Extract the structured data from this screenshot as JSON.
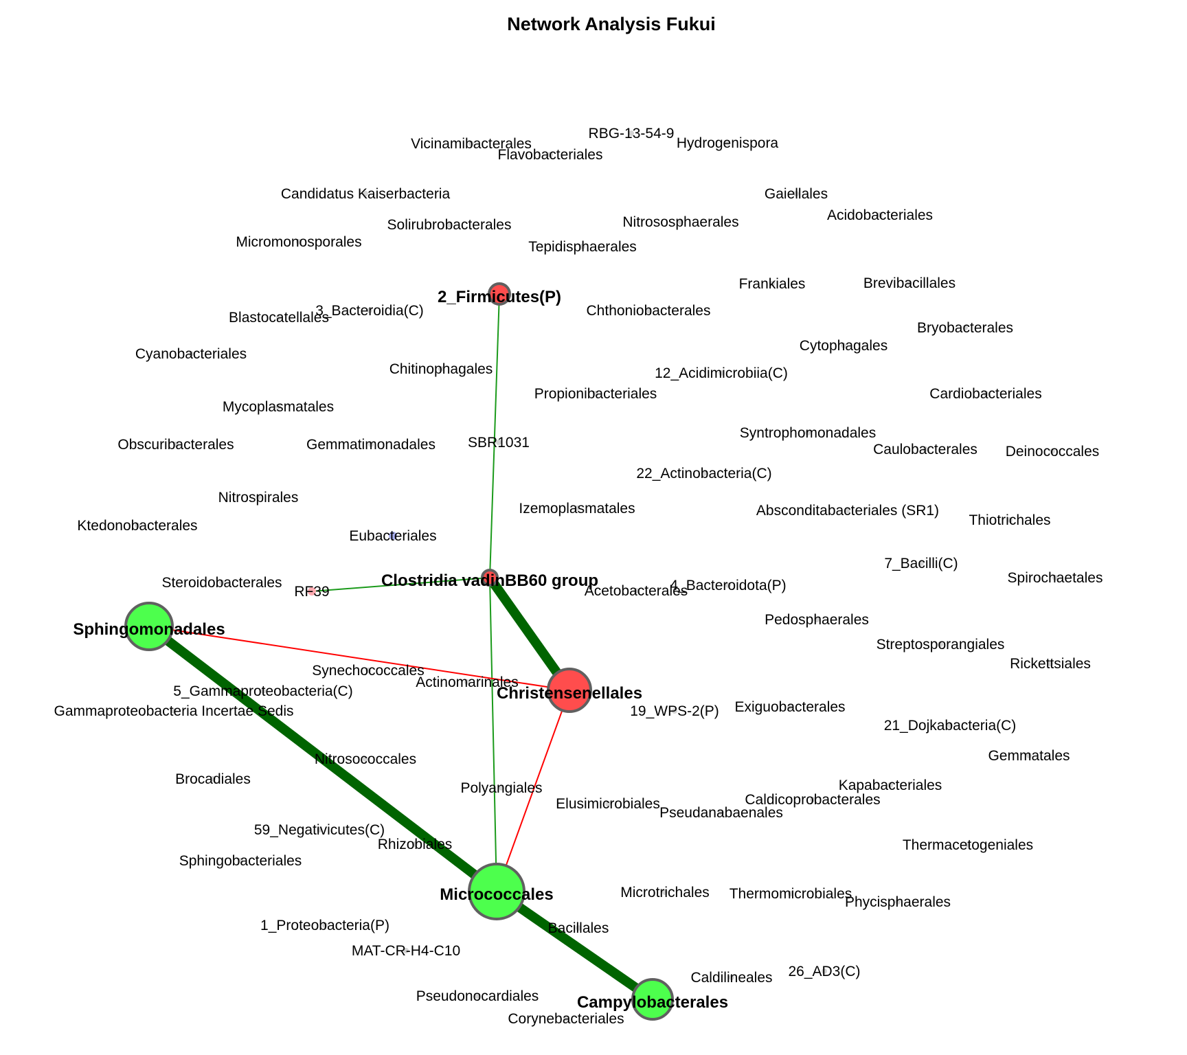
{
  "title": "Network Analysis Fukui",
  "colors": {
    "positive_edge": "#006400",
    "negative_edge": "#ff0000",
    "thin_positive_edge": "#1a9a1a",
    "green_node": "#4dff4d",
    "red_node": "#ff4d4d",
    "node_border": "#606060",
    "small_node": "#d3d3d3",
    "blue_node": "#aab0f0",
    "pink_node": "#ffaab0"
  },
  "hub_nodes": [
    {
      "label": "2_Firmicutes(P)",
      "color": "red"
    },
    {
      "label": "Clostridia vadinBB60 group",
      "color": "red"
    },
    {
      "label": "Sphingomonadales",
      "color": "green"
    },
    {
      "label": "Christensenellales",
      "color": "red"
    },
    {
      "label": "Micrococcales",
      "color": "green"
    },
    {
      "label": "Campylobacterales",
      "color": "green"
    }
  ],
  "edges": [
    {
      "source": "Sphingomonadales",
      "target": "Micrococcales",
      "sign": "positive",
      "weight": "strong"
    },
    {
      "source": "Micrococcales",
      "target": "Campylobacterales",
      "sign": "positive",
      "weight": "strong"
    },
    {
      "source": "Clostridia vadinBB60 group",
      "target": "Christensenellales",
      "sign": "positive",
      "weight": "strong"
    },
    {
      "source": "2_Firmicutes(P)",
      "target": "Clostridia vadinBB60 group",
      "sign": "positive",
      "weight": "weak"
    },
    {
      "source": "Clostridia vadinBB60 group",
      "target": "Micrococcales",
      "sign": "positive",
      "weight": "weak"
    },
    {
      "source": "RF39",
      "target": "Clostridia vadinBB60 group",
      "sign": "positive",
      "weight": "weak"
    },
    {
      "source": "Sphingomonadales",
      "target": "Christensenellales",
      "sign": "negative",
      "weight": "weak"
    },
    {
      "source": "Christensenellales",
      "target": "Micrococcales",
      "sign": "negative",
      "weight": "weak"
    }
  ],
  "minor_nodes": [
    "RBG-13-54-9",
    "Vicinamibacterales",
    "Flavobacteriales",
    "Hydrogenispora",
    "Candidatus Kaiserbacteria",
    "Gaiellales",
    "Acidobacteriales",
    "Solirubrobacterales",
    "Nitrososphaerales",
    "Micromonosporales",
    "Tepidisphaerales",
    "Frankiales",
    "Brevibacillales",
    "3_Bacteroidia(C)",
    "Blastocatellales",
    "Chthoniobacterales",
    "Bryobacterales",
    "Cytophagales",
    "Cyanobacteriales",
    "Chitinophagales",
    "12_Acidimicrobiia(C)",
    "Propionibacteriales",
    "Cardiobacteriales",
    "Mycoplasmatales",
    "Syntrophomonadales",
    "Obscuribacterales",
    "Gemmatimonadales",
    "SBR1031",
    "Caulobacterales",
    "Deinococcales",
    "22_Actinobacteria(C)",
    "Nitrospirales",
    "Izemoplasmatales",
    "Absconditabacteriales (SR1)",
    "Thiotrichales",
    "Ktedonobacterales",
    "Eubacteriales",
    "7_Bacilli(C)",
    "Steroidobacterales",
    "Spirochaetales",
    "RF39",
    "4_Bacteroidota(P)",
    "Acetobacterales",
    "Pedosphaerales",
    "Streptosporangiales",
    "Rickettsiales",
    "Synechococcales",
    "5_Gammaproteobacteria(C)",
    "Actinomarinales",
    "Gammaproteobacteria Incertae Sedis",
    "19_WPS-2(P)",
    "Exiguobacterales",
    "21_Dojkabacteria(C)",
    "Gemmatales",
    "Nitrosococcales",
    "Brocadiales",
    "Kapabacteriales",
    "Polyangiales",
    "Caldicoprobacterales",
    "Elusimicrobiales",
    "Pseudanabaenales",
    "59_Negativicutes(C)",
    "Thermacetogeniales",
    "Rhizobiales",
    "Sphingobacteriales",
    "Microtrichales",
    "Thermomicrobiales",
    "Phycisphaerales",
    "1_Proteobacteria(P)",
    "Bacillales",
    "MAT-CR-H4-C10",
    "Caldilineales",
    "26_AD3(C)",
    "Pseudonocardiales",
    "Corynebacteriales"
  ]
}
